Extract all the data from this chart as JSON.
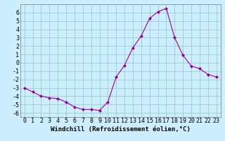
{
  "x": [
    0,
    1,
    2,
    3,
    4,
    5,
    6,
    7,
    8,
    9,
    10,
    11,
    12,
    13,
    14,
    15,
    16,
    17,
    18,
    19,
    20,
    21,
    22,
    23
  ],
  "y": [
    -3.0,
    -3.5,
    -4.0,
    -4.2,
    -4.3,
    -4.7,
    -5.3,
    -5.6,
    -5.6,
    -5.7,
    -4.7,
    -1.7,
    -0.3,
    1.8,
    3.2,
    5.3,
    6.1,
    6.5,
    3.0,
    0.9,
    -0.4,
    -0.7,
    -1.4,
    -1.7
  ],
  "line_color": "#990099",
  "marker": "D",
  "marker_size": 2.0,
  "bg_color": "#cceeff",
  "grid_color": "#99cccc",
  "xlabel": "Windchill (Refroidissement éolien,°C)",
  "xlim": [
    -0.5,
    23.5
  ],
  "ylim": [
    -6.5,
    7.0
  ],
  "xticks": [
    0,
    1,
    2,
    3,
    4,
    5,
    6,
    7,
    8,
    9,
    10,
    11,
    12,
    13,
    14,
    15,
    16,
    17,
    18,
    19,
    20,
    21,
    22,
    23
  ],
  "yticks": [
    -6,
    -5,
    -4,
    -3,
    -2,
    -1,
    0,
    1,
    2,
    3,
    4,
    5,
    6
  ],
  "xlabel_fontsize": 6.5,
  "tick_fontsize": 6.0
}
